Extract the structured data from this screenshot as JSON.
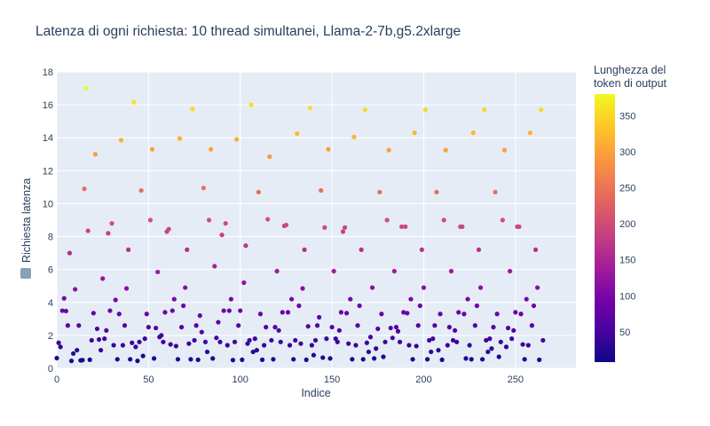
{
  "chart_data": {
    "type": "scatter",
    "title": "Latenza di ogni richiesta: 10 thread simultanei, Llama-2-7b,g5.2xlarge",
    "xlabel": "Indice",
    "ylabel": "Richiesta latenza",
    "xlim": [
      0,
      283
    ],
    "ylim": [
      0,
      18
    ],
    "x_ticks": [
      "0",
      "50",
      "100",
      "150",
      "200",
      "250"
    ],
    "y_ticks": [
      "0",
      "2",
      "4",
      "6",
      "8",
      "10",
      "12",
      "14",
      "16",
      "18"
    ],
    "grid": true,
    "colorbar": {
      "title": [
        "Lunghezza del",
        "token di output"
      ],
      "ticks": [
        "50",
        "100",
        "150",
        "200",
        "250",
        "300",
        "350"
      ],
      "range": [
        8,
        380
      ],
      "colorscale": "Plasma"
    },
    "points": [
      [
        0,
        0.62
      ],
      [
        1,
        1.55
      ],
      [
        2,
        1.3
      ],
      [
        3,
        3.5
      ],
      [
        4,
        4.25
      ],
      [
        5,
        3.48
      ],
      [
        6,
        2.6
      ],
      [
        7,
        7.0
      ],
      [
        8,
        0.45
      ],
      [
        9,
        0.9
      ],
      [
        10,
        4.8
      ],
      [
        11,
        1.1
      ],
      [
        12,
        2.6
      ],
      [
        13,
        0.48
      ],
      [
        14,
        0.5
      ],
      [
        15,
        10.9
      ],
      [
        16,
        17.0
      ],
      [
        17,
        8.35
      ],
      [
        18,
        0.52
      ],
      [
        19,
        1.7
      ],
      [
        20,
        3.35
      ],
      [
        21,
        13.0
      ],
      [
        22,
        2.4
      ],
      [
        23,
        1.75
      ],
      [
        24,
        1.1
      ],
      [
        25,
        5.45
      ],
      [
        26,
        1.8
      ],
      [
        27,
        2.3
      ],
      [
        28,
        8.2
      ],
      [
        29,
        3.5
      ],
      [
        30,
        8.8
      ],
      [
        31,
        1.4
      ],
      [
        32,
        4.15
      ],
      [
        33,
        0.55
      ],
      [
        34,
        3.3
      ],
      [
        35,
        13.85
      ],
      [
        36,
        1.4
      ],
      [
        37,
        2.6
      ],
      [
        38,
        4.85
      ],
      [
        39,
        7.2
      ],
      [
        40,
        0.55
      ],
      [
        41,
        1.55
      ],
      [
        42,
        16.15
      ],
      [
        43,
        1.3
      ],
      [
        44,
        0.45
      ],
      [
        45,
        1.6
      ],
      [
        46,
        10.8
      ],
      [
        47,
        0.75
      ],
      [
        48,
        1.8
      ],
      [
        49,
        3.3
      ],
      [
        50,
        2.5
      ],
      [
        51,
        9.0
      ],
      [
        52,
        13.3
      ],
      [
        53,
        0.6
      ],
      [
        54,
        2.45
      ],
      [
        55,
        5.85
      ],
      [
        56,
        1.9
      ],
      [
        57,
        2.0
      ],
      [
        58,
        1.6
      ],
      [
        59,
        3.4
      ],
      [
        60,
        8.3
      ],
      [
        61,
        8.45
      ],
      [
        62,
        1.45
      ],
      [
        63,
        3.5
      ],
      [
        64,
        4.2
      ],
      [
        65,
        1.35
      ],
      [
        66,
        0.55
      ],
      [
        67,
        13.95
      ],
      [
        68,
        2.5
      ],
      [
        69,
        3.8
      ],
      [
        70,
        4.9
      ],
      [
        71,
        7.2
      ],
      [
        72,
        1.5
      ],
      [
        73,
        0.55
      ],
      [
        74,
        15.75
      ],
      [
        75,
        1.7
      ],
      [
        76,
        2.6
      ],
      [
        77,
        0.52
      ],
      [
        78,
        3.2
      ],
      [
        79,
        2.2
      ],
      [
        80,
        10.95
      ],
      [
        81,
        1.6
      ],
      [
        82,
        1.0
      ],
      [
        83,
        9.0
      ],
      [
        84,
        13.3
      ],
      [
        85,
        0.6
      ],
      [
        86,
        6.2
      ],
      [
        87,
        1.85
      ],
      [
        88,
        2.8
      ],
      [
        89,
        1.6
      ],
      [
        90,
        8.1
      ],
      [
        91,
        3.5
      ],
      [
        92,
        8.8
      ],
      [
        93,
        1.4
      ],
      [
        94,
        3.5
      ],
      [
        95,
        4.2
      ],
      [
        96,
        0.5
      ],
      [
        97,
        1.6
      ],
      [
        98,
        13.9
      ],
      [
        99,
        2.6
      ],
      [
        100,
        3.5
      ],
      [
        101,
        0.52
      ],
      [
        102,
        5.2
      ],
      [
        103,
        7.45
      ],
      [
        104,
        1.5
      ],
      [
        105,
        1.7
      ],
      [
        106,
        16.0
      ],
      [
        107,
        1.0
      ],
      [
        108,
        1.8
      ],
      [
        109,
        1.1
      ],
      [
        110,
        10.7
      ],
      [
        111,
        3.3
      ],
      [
        112,
        0.52
      ],
      [
        113,
        1.4
      ],
      [
        114,
        2.5
      ],
      [
        115,
        9.05
      ],
      [
        116,
        12.85
      ],
      [
        117,
        1.7
      ],
      [
        118,
        0.55
      ],
      [
        119,
        2.5
      ],
      [
        120,
        5.9
      ],
      [
        121,
        2.3
      ],
      [
        122,
        1.6
      ],
      [
        123,
        3.4
      ],
      [
        124,
        8.65
      ],
      [
        125,
        8.7
      ],
      [
        126,
        3.4
      ],
      [
        127,
        1.4
      ],
      [
        128,
        4.2
      ],
      [
        129,
        0.55
      ],
      [
        130,
        1.7
      ],
      [
        131,
        14.25
      ],
      [
        132,
        3.8
      ],
      [
        133,
        1.5
      ],
      [
        134,
        4.85
      ],
      [
        135,
        7.2
      ],
      [
        136,
        0.52
      ],
      [
        137,
        2.55
      ],
      [
        138,
        15.8
      ],
      [
        139,
        1.4
      ],
      [
        140,
        0.8
      ],
      [
        141,
        1.7
      ],
      [
        142,
        2.6
      ],
      [
        143,
        3.1
      ],
      [
        144,
        10.8
      ],
      [
        145,
        0.65
      ],
      [
        146,
        8.55
      ],
      [
        147,
        1.8
      ],
      [
        148,
        13.3
      ],
      [
        149,
        0.6
      ],
      [
        150,
        2.5
      ],
      [
        151,
        5.9
      ],
      [
        152,
        1.8
      ],
      [
        153,
        1.6
      ],
      [
        154,
        2.3
      ],
      [
        155,
        3.4
      ],
      [
        156,
        8.3
      ],
      [
        157,
        8.55
      ],
      [
        158,
        3.35
      ],
      [
        159,
        1.5
      ],
      [
        160,
        4.2
      ],
      [
        161,
        0.55
      ],
      [
        162,
        14.05
      ],
      [
        163,
        1.4
      ],
      [
        164,
        2.6
      ],
      [
        165,
        3.8
      ],
      [
        166,
        7.2
      ],
      [
        167,
        0.55
      ],
      [
        168,
        15.7
      ],
      [
        169,
        1.55
      ],
      [
        170,
        1.0
      ],
      [
        171,
        1.9
      ],
      [
        172,
        4.9
      ],
      [
        173,
        0.6
      ],
      [
        174,
        1.2
      ],
      [
        175,
        2.4
      ],
      [
        176,
        10.7
      ],
      [
        177,
        3.3
      ],
      [
        178,
        0.7
      ],
      [
        179,
        1.6
      ],
      [
        180,
        9.0
      ],
      [
        181,
        13.25
      ],
      [
        182,
        2.45
      ],
      [
        183,
        1.85
      ],
      [
        184,
        5.9
      ],
      [
        185,
        2.5
      ],
      [
        186,
        2.25
      ],
      [
        187,
        1.6
      ],
      [
        188,
        8.6
      ],
      [
        189,
        3.4
      ],
      [
        190,
        8.6
      ],
      [
        191,
        3.35
      ],
      [
        192,
        1.4
      ],
      [
        193,
        4.2
      ],
      [
        194,
        0.55
      ],
      [
        195,
        14.3
      ],
      [
        196,
        1.35
      ],
      [
        197,
        2.6
      ],
      [
        198,
        3.8
      ],
      [
        199,
        7.2
      ],
      [
        200,
        4.9
      ],
      [
        201,
        15.7
      ],
      [
        202,
        0.55
      ],
      [
        203,
        1.7
      ],
      [
        204,
        1.0
      ],
      [
        205,
        1.8
      ],
      [
        206,
        2.6
      ],
      [
        207,
        10.7
      ],
      [
        208,
        1.1
      ],
      [
        209,
        3.3
      ],
      [
        210,
        0.52
      ],
      [
        211,
        9.0
      ],
      [
        212,
        13.25
      ],
      [
        213,
        1.4
      ],
      [
        214,
        2.5
      ],
      [
        215,
        5.9
      ],
      [
        216,
        1.7
      ],
      [
        217,
        2.3
      ],
      [
        218,
        1.6
      ],
      [
        219,
        3.4
      ],
      [
        220,
        8.6
      ],
      [
        221,
        8.6
      ],
      [
        222,
        3.3
      ],
      [
        223,
        0.6
      ],
      [
        224,
        4.2
      ],
      [
        225,
        1.4
      ],
      [
        226,
        0.55
      ],
      [
        227,
        14.3
      ],
      [
        228,
        2.6
      ],
      [
        229,
        3.8
      ],
      [
        230,
        7.2
      ],
      [
        231,
        4.9
      ],
      [
        232,
        0.55
      ],
      [
        233,
        15.7
      ],
      [
        234,
        1.7
      ],
      [
        235,
        1.0
      ],
      [
        236,
        1.8
      ],
      [
        237,
        1.2
      ],
      [
        238,
        2.5
      ],
      [
        239,
        10.7
      ],
      [
        240,
        3.3
      ],
      [
        241,
        0.7
      ],
      [
        242,
        1.6
      ],
      [
        243,
        9.0
      ],
      [
        244,
        13.25
      ],
      [
        245,
        1.3
      ],
      [
        246,
        2.45
      ],
      [
        247,
        5.9
      ],
      [
        248,
        1.8
      ],
      [
        249,
        2.3
      ],
      [
        250,
        3.4
      ],
      [
        251,
        8.6
      ],
      [
        252,
        8.6
      ],
      [
        253,
        3.3
      ],
      [
        254,
        1.45
      ],
      [
        255,
        0.55
      ],
      [
        256,
        4.2
      ],
      [
        257,
        1.4
      ],
      [
        258,
        14.3
      ],
      [
        259,
        2.6
      ],
      [
        260,
        3.8
      ],
      [
        261,
        7.2
      ],
      [
        262,
        4.9
      ],
      [
        263,
        0.52
      ],
      [
        264,
        15.7
      ],
      [
        265,
        1.7
      ]
    ]
  }
}
